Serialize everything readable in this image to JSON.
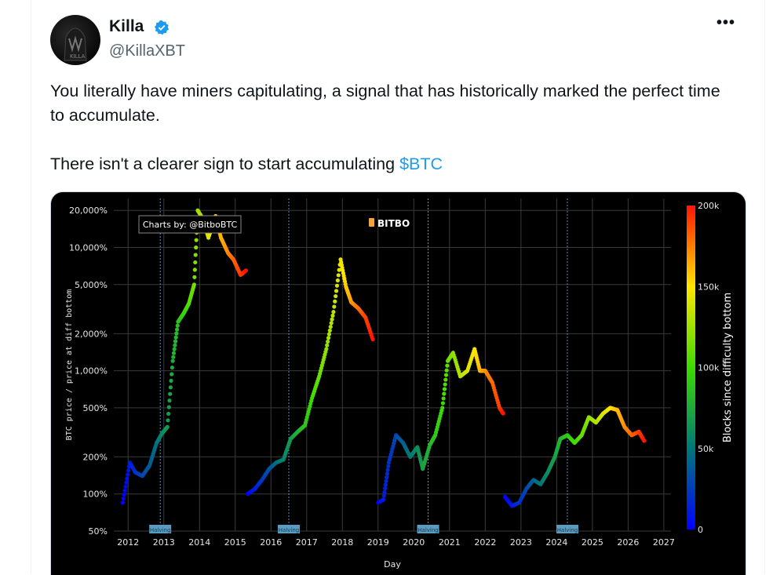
{
  "tweet": {
    "author": {
      "name": "Killa",
      "handle": "@KillaXBT",
      "verified": true,
      "avatar_icon": "hooded-figure-avatar"
    },
    "more_label": "•••",
    "text_line1": "You literally have miners capitulating, a signal that has historically marked the perfect time to accumulate.",
    "text_line2_prefix": "There isn't a clearer sign to start accumulating ",
    "cashtag": "$BTC"
  },
  "colors": {
    "link": "#1d9bf0",
    "verified": "#1d9bf0",
    "chart_bg": "#000000",
    "grid": "#3a3a3a",
    "halving_line": "#5b8fc7",
    "halving_label_bg": "#5a9cc0"
  },
  "chart_data": {
    "type": "scatter",
    "credit": "Charts by: @BitboBTC",
    "brand": "BITBO",
    "xlabel": "Day",
    "ylabel": "BTC price / price at diff bottom",
    "y_scale": "log",
    "ylim": [
      50,
      25000
    ],
    "xlim": [
      2011.6,
      2027.2
    ],
    "x_ticks": [
      "2012",
      "2013",
      "2014",
      "2015",
      "2016",
      "2017",
      "2018",
      "2019",
      "2020",
      "2021",
      "2022",
      "2023",
      "2024",
      "2025",
      "2026",
      "2027"
    ],
    "y_ticks": [
      {
        "value": 50,
        "label": "50%"
      },
      {
        "value": 100,
        "label": "100%"
      },
      {
        "value": 200,
        "label": "200%"
      },
      {
        "value": 500,
        "label": "500%"
      },
      {
        "value": 1000,
        "label": "1,000%"
      },
      {
        "value": 2000,
        "label": "2,000%"
      },
      {
        "value": 5000,
        "label": "5,000%"
      },
      {
        "value": 10000,
        "label": "10,000%"
      },
      {
        "value": 20000,
        "label": "20,000%"
      }
    ],
    "halvings": [
      {
        "x": 2012.9,
        "label": "Halving"
      },
      {
        "x": 2016.5,
        "label": "Halving"
      },
      {
        "x": 2020.4,
        "label": "Halving"
      },
      {
        "x": 2024.3,
        "label": "Halving"
      }
    ],
    "colorbar": {
      "title": "Blocks since difficulty bottom",
      "range": [
        0,
        200000
      ],
      "ticks": [
        {
          "value": 0,
          "label": "0"
        },
        {
          "value": 50000,
          "label": "50k"
        },
        {
          "value": 100000,
          "label": "100k"
        },
        {
          "value": 150000,
          "label": "150k"
        },
        {
          "value": 200000,
          "label": "200k"
        }
      ]
    },
    "series": [
      {
        "x": [
          2011.85,
          2012.05,
          2012.2,
          2012.4,
          2012.6,
          2012.8,
          2012.95,
          2013.1,
          2013.25,
          2013.4,
          2013.55,
          2013.7,
          2013.85,
          2013.95,
          2014.1,
          2014.25,
          2014.45,
          2014.6,
          2014.8,
          2014.95,
          2015.15,
          2015.3
        ],
        "y": [
          85,
          180,
          150,
          140,
          170,
          260,
          310,
          350,
          1200,
          2500,
          2900,
          3500,
          5000,
          20000,
          17000,
          12000,
          18000,
          12000,
          9000,
          8000,
          6000,
          6500
        ]
      },
      {
        "x": [
          2015.35,
          2015.55,
          2015.75,
          2015.95,
          2016.15,
          2016.35,
          2016.55,
          2016.75,
          2016.95,
          2017.15,
          2017.35,
          2017.55,
          2017.75,
          2017.95,
          2018.1,
          2018.25,
          2018.45,
          2018.65,
          2018.85
        ],
        "y": [
          100,
          110,
          130,
          160,
          180,
          190,
          280,
          320,
          360,
          600,
          900,
          1500,
          3000,
          8000,
          4800,
          3600,
          3200,
          2700,
          1800
        ]
      },
      {
        "x": [
          2019.0,
          2019.15,
          2019.3,
          2019.5,
          2019.7,
          2019.9,
          2020.1,
          2020.25,
          2020.45,
          2020.6,
          2020.8,
          2020.95,
          2021.1,
          2021.3,
          2021.5,
          2021.7,
          2021.85,
          2022.0,
          2022.2,
          2022.4,
          2022.5
        ],
        "y": [
          85,
          90,
          180,
          300,
          260,
          200,
          240,
          160,
          250,
          300,
          500,
          1200,
          1400,
          900,
          1000,
          1500,
          1000,
          1000,
          800,
          500,
          450
        ]
      },
      {
        "x": [
          2022.55,
          2022.75,
          2022.95,
          2023.15,
          2023.35,
          2023.55,
          2023.75,
          2023.95,
          2024.1,
          2024.3,
          2024.5,
          2024.7,
          2024.9,
          2025.1,
          2025.3,
          2025.5,
          2025.7,
          2025.9,
          2026.1,
          2026.3,
          2026.45
        ],
        "y": [
          95,
          80,
          85,
          110,
          130,
          120,
          150,
          200,
          280,
          300,
          260,
          300,
          420,
          380,
          450,
          500,
          480,
          350,
          300,
          320,
          270
        ]
      }
    ]
  }
}
